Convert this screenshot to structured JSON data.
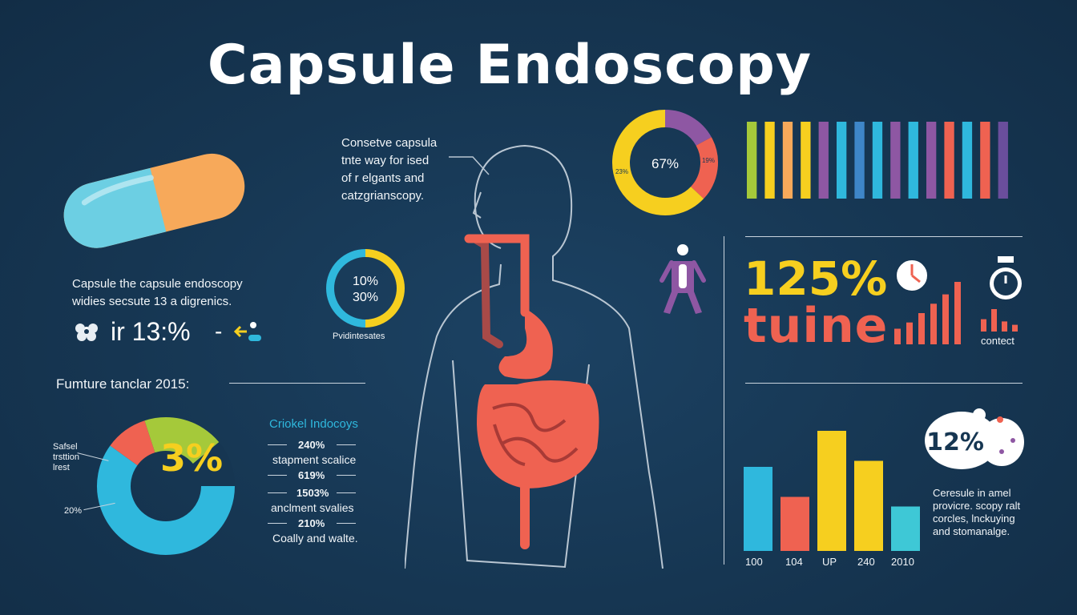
{
  "title": "Capsule Endoscopy",
  "colors": {
    "background": "#163652",
    "yellow": "#f6cf1f",
    "coral": "#ef6251",
    "blue": "#2fb8dd",
    "purple": "#8e57a3",
    "green": "#a5c93a",
    "teal": "#3ec8d6",
    "orange": "#f7a95a",
    "capsule_blue": "#6ccfe3"
  },
  "capsule": {
    "caption_line1": "Capsule the capsule endoscopy",
    "caption_line2": "widies secsute 13 a digrenics.",
    "stat": "ir 13:%",
    "stat_dash": "-"
  },
  "annotation": {
    "line1": "Consetve capsula",
    "line2": "tnte way for ised",
    "line3": "of r elgants and",
    "line4": "catzgrianscopy."
  },
  "small_donut": {
    "label_top": "10%",
    "label_bottom": "30%",
    "caption": "Pvidintesates",
    "segments": [
      {
        "color": "#f6cf1f",
        "fraction": 0.5
      },
      {
        "color": "#2fb8dd",
        "fraction": 0.5
      }
    ]
  },
  "top_donut": {
    "center_label": "67%",
    "left_label": "23%",
    "right_label": "19%",
    "segments": [
      {
        "color": "#8e57a3",
        "fraction": 0.17
      },
      {
        "color": "#ef6251",
        "fraction": 0.2
      },
      {
        "color": "#f6cf1f",
        "fraction": 0.63
      }
    ]
  },
  "stripes": {
    "colors": [
      "#a5c93a",
      "#f6cf1f",
      "#f7a95a",
      "#f6cf1f",
      "#8e57a3",
      "#2fb8dd",
      "#3e86c8",
      "#2fb8dd",
      "#8e57a3",
      "#2fb8dd",
      "#8e57a3",
      "#ef6251",
      "#2fb8dd",
      "#ef6251",
      "#6a4e9c"
    ]
  },
  "stats": {
    "big_percent": "125%",
    "big_word": "tuine",
    "contect": "contect",
    "mini_bars": [
      0.25,
      0.35,
      0.5,
      0.65,
      0.8,
      1.0
    ],
    "mini_bars2": [
      0.55,
      1.0,
      0.45,
      0.3
    ]
  },
  "future": {
    "heading": "Fumture tanclar 2015:",
    "big_label": "3%",
    "legend_left1": "Safsel",
    "legend_left2": "trsttion",
    "legend_left3": "lrest",
    "legend_bottom": "20%",
    "segments": [
      {
        "color": "#a5c93a",
        "fraction": 0.14
      },
      {
        "color": "#163652",
        "fraction": 0.11
      },
      {
        "color": "#2fb8dd",
        "fraction": 0.6
      },
      {
        "color": "#ef6251",
        "fraction": 0.1
      },
      {
        "color": "#a5c93a",
        "fraction": 0.05
      }
    ]
  },
  "legend": {
    "heading": "Criokel Indocoys",
    "rows": [
      {
        "value": "240%",
        "text": "stapment scalice"
      },
      {
        "value": "619%",
        "text": ""
      },
      {
        "value": "1503%",
        "text": "anclment svalies"
      },
      {
        "value": "210%",
        "text": "Coally and walte."
      }
    ]
  },
  "bar_chart": {
    "categories": [
      "100",
      "104",
      "UP",
      "240",
      "2010"
    ],
    "bars": [
      {
        "color": "#2fb8dd",
        "value": 0.7
      },
      {
        "color": "#ef6251",
        "value": 0.45
      },
      {
        "color": "#f6cf1f",
        "value": 1.0
      },
      {
        "color": "#f6cf1f",
        "value": 0.75
      },
      {
        "color": "#3ec8d6",
        "value": 0.37
      }
    ]
  },
  "badge": {
    "label": "12%"
  },
  "bottom_right_text": {
    "line1": "Ceresule in amel",
    "line2": "provicre. scopy ralt",
    "line3": "corcles, lnckuying",
    "line4": "and stomanalge."
  }
}
